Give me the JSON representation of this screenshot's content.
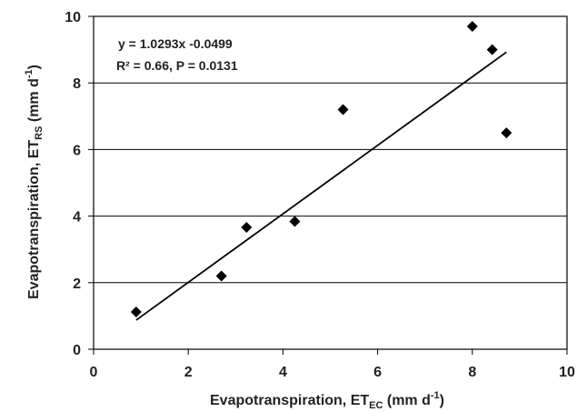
{
  "chart_data": {
    "type": "scatter",
    "xlim": [
      0,
      10
    ],
    "ylim": [
      0,
      10
    ],
    "x_ticks": [
      "0",
      "2",
      "4",
      "6",
      "8",
      "10"
    ],
    "y_ticks": [
      "0",
      "2",
      "4",
      "6",
      "8",
      "10"
    ],
    "xlabel": {
      "main": "Evapotranspiration,  ET",
      "sub": "EC",
      "unit": " (mm d",
      "sup": "-1",
      "close": ")"
    },
    "ylabel": {
      "main": "Evapotranspiration,  ET",
      "sub": "RS",
      "unit": "  (mm d",
      "sup": "-1",
      "close": ")"
    },
    "series": [
      {
        "marker": "diamond",
        "color": "#000000",
        "points": [
          {
            "x": 0.9,
            "y": 1.12
          },
          {
            "x": 2.7,
            "y": 2.2
          },
          {
            "x": 3.23,
            "y": 3.66
          },
          {
            "x": 4.25,
            "y": 3.84
          },
          {
            "x": 5.27,
            "y": 7.2
          },
          {
            "x": 8.0,
            "y": 9.7
          },
          {
            "x": 8.42,
            "y": 9.0
          },
          {
            "x": 8.72,
            "y": 6.5
          }
        ]
      }
    ],
    "trendline": {
      "slope": 1.0293,
      "intercept": -0.0499,
      "x_range": [
        0.9,
        8.72
      ],
      "equation": "y = 1.0293x -0.0499",
      "r2_label": "R² = 0.66, P = 0.0131"
    },
    "gridlines": "horizontal",
    "legend": "none"
  }
}
